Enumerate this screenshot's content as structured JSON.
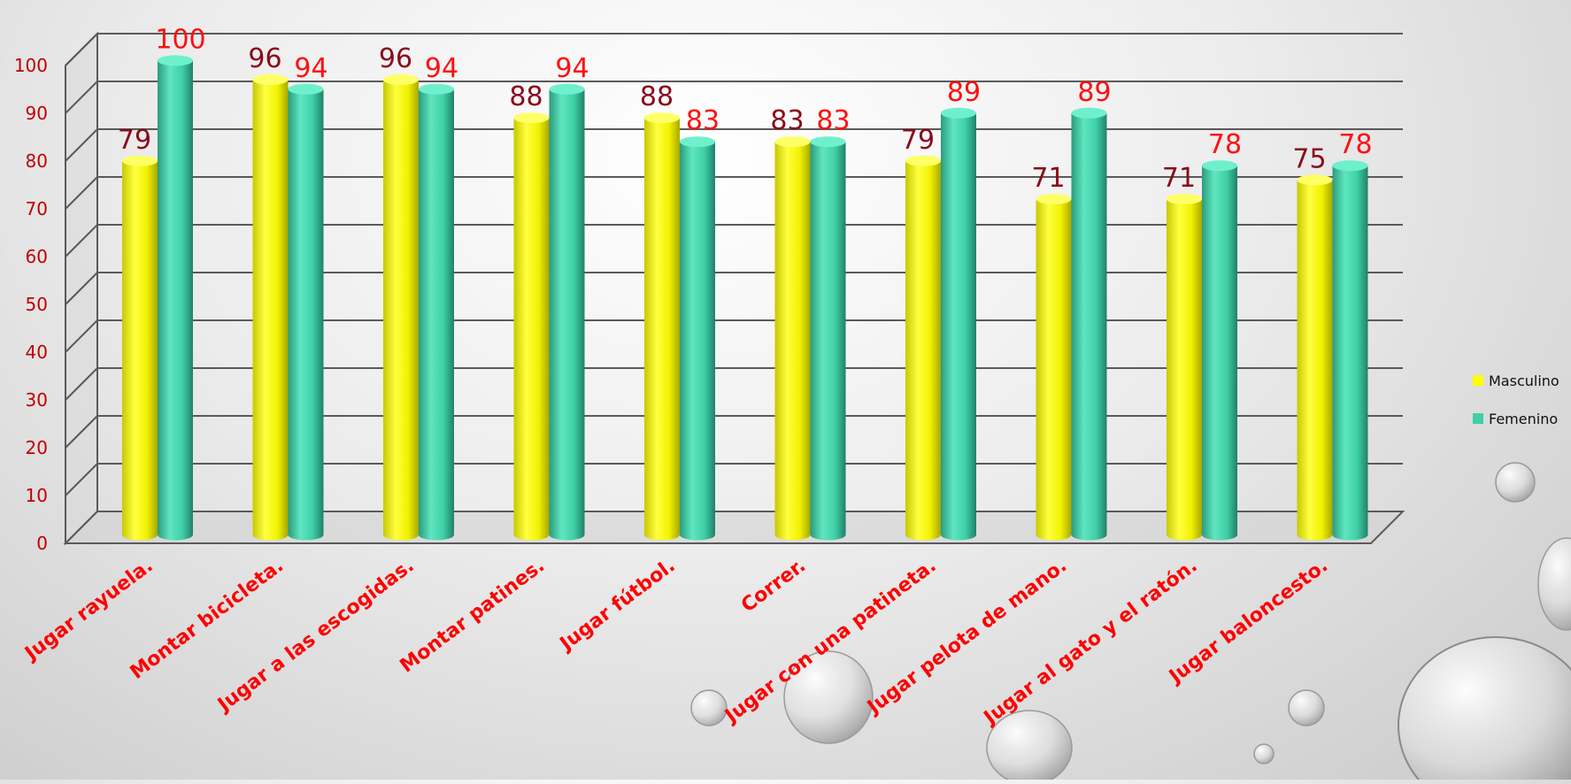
{
  "chart_data": {
    "type": "bar",
    "categories": [
      "Jugar rayuela.",
      "Montar bicicleta.",
      "Jugar a las escogidas.",
      "Montar patines.",
      "Jugar fútbol.",
      "Correr.",
      "Jugar con una patineta.",
      "Jugar pelota de mano.",
      "Jugar al  gato y el ratón.",
      "Jugar baloncesto."
    ],
    "series": [
      {
        "name": "Masculino",
        "values": [
          79,
          96,
          96,
          88,
          88,
          83,
          79,
          71,
          71,
          75
        ],
        "color": "#ffff00"
      },
      {
        "name": "Femenino",
        "values": [
          100,
          94,
          94,
          94,
          83,
          83,
          89,
          89,
          78,
          78
        ],
        "color": "#40cfa8"
      }
    ],
    "ylim": [
      0,
      100
    ],
    "yticks": [
      "0",
      "10",
      "20",
      "30",
      "40",
      "50",
      "60",
      "70",
      "80",
      "90",
      "100"
    ],
    "grid": true,
    "legend_position": "right",
    "colors": {
      "ytick": "#c00000",
      "xtick": "#ff0000",
      "label_masculino": "#8b0a1a",
      "label_femenino": "#ff1010",
      "grid": "#5a5a5a"
    },
    "bar_shape": "cylinder-3d"
  }
}
